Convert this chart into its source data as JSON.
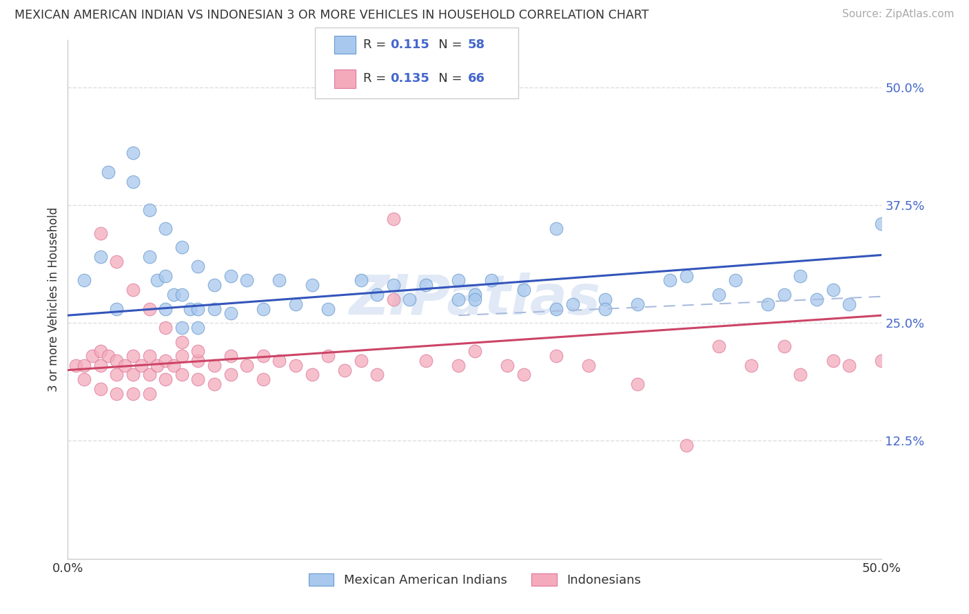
{
  "title": "MEXICAN AMERICAN INDIAN VS INDONESIAN 3 OR MORE VEHICLES IN HOUSEHOLD CORRELATION CHART",
  "source": "Source: ZipAtlas.com",
  "ylabel": "3 or more Vehicles in Household",
  "xlim": [
    0.0,
    0.5
  ],
  "ylim": [
    0.0,
    0.55
  ],
  "r_blue": 0.115,
  "n_blue": 58,
  "r_pink": 0.135,
  "n_pink": 66,
  "blue_scatter_color": "#A8C8EE",
  "pink_scatter_color": "#F4AABB",
  "blue_edge_color": "#6699CC",
  "pink_edge_color": "#DD7799",
  "line_blue": "#3355BB",
  "line_pink": "#CC4466",
  "line_dash_color": "#AABBDD",
  "watermark": "ZIPatlas",
  "background_color": "#FFFFFF",
  "grid_color": "#DDDDDD",
  "ytick_color": "#4466CC",
  "text_color": "#333333",
  "source_color": "#AAAAAA",
  "blue_line_y0": 0.258,
  "blue_line_y1": 0.322,
  "pink_line_y0": 0.2,
  "pink_line_y1": 0.258,
  "dash_line_y0": 0.258,
  "dash_line_y1": 0.278,
  "blue_x": [
    0.01,
    0.02,
    0.025,
    0.04,
    0.04,
    0.05,
    0.05,
    0.055,
    0.06,
    0.06,
    0.065,
    0.07,
    0.07,
    0.075,
    0.08,
    0.08,
    0.09,
    0.09,
    0.1,
    0.1,
    0.11,
    0.12,
    0.13,
    0.14,
    0.15,
    0.16,
    0.18,
    0.19,
    0.2,
    0.21,
    0.22,
    0.24,
    0.25,
    0.26,
    0.28,
    0.3,
    0.31,
    0.33,
    0.35,
    0.37,
    0.38,
    0.4,
    0.41,
    0.43,
    0.44,
    0.45,
    0.46,
    0.47,
    0.48,
    0.5,
    0.03,
    0.06,
    0.07,
    0.08,
    0.24,
    0.25,
    0.3,
    0.33
  ],
  "blue_y": [
    0.295,
    0.32,
    0.41,
    0.43,
    0.4,
    0.37,
    0.32,
    0.295,
    0.35,
    0.3,
    0.28,
    0.33,
    0.28,
    0.265,
    0.31,
    0.265,
    0.29,
    0.265,
    0.3,
    0.26,
    0.295,
    0.265,
    0.295,
    0.27,
    0.29,
    0.265,
    0.295,
    0.28,
    0.29,
    0.275,
    0.29,
    0.295,
    0.28,
    0.295,
    0.285,
    0.35,
    0.27,
    0.275,
    0.27,
    0.295,
    0.3,
    0.28,
    0.295,
    0.27,
    0.28,
    0.3,
    0.275,
    0.285,
    0.27,
    0.355,
    0.265,
    0.265,
    0.245,
    0.245,
    0.275,
    0.275,
    0.265,
    0.265
  ],
  "pink_x": [
    0.005,
    0.01,
    0.01,
    0.015,
    0.02,
    0.02,
    0.02,
    0.025,
    0.03,
    0.03,
    0.03,
    0.035,
    0.04,
    0.04,
    0.04,
    0.045,
    0.05,
    0.05,
    0.05,
    0.055,
    0.06,
    0.06,
    0.065,
    0.07,
    0.07,
    0.08,
    0.08,
    0.09,
    0.09,
    0.1,
    0.1,
    0.11,
    0.12,
    0.12,
    0.13,
    0.14,
    0.15,
    0.16,
    0.17,
    0.18,
    0.19,
    0.2,
    0.22,
    0.24,
    0.25,
    0.27,
    0.28,
    0.3,
    0.32,
    0.35,
    0.38,
    0.4,
    0.42,
    0.44,
    0.45,
    0.47,
    0.48,
    0.5,
    0.02,
    0.03,
    0.04,
    0.05,
    0.06,
    0.07,
    0.08,
    0.2
  ],
  "pink_y": [
    0.205,
    0.205,
    0.19,
    0.215,
    0.22,
    0.205,
    0.18,
    0.215,
    0.21,
    0.195,
    0.175,
    0.205,
    0.215,
    0.195,
    0.175,
    0.205,
    0.215,
    0.195,
    0.175,
    0.205,
    0.21,
    0.19,
    0.205,
    0.215,
    0.195,
    0.21,
    0.19,
    0.205,
    0.185,
    0.215,
    0.195,
    0.205,
    0.215,
    0.19,
    0.21,
    0.205,
    0.195,
    0.215,
    0.2,
    0.21,
    0.195,
    0.275,
    0.21,
    0.205,
    0.22,
    0.205,
    0.195,
    0.215,
    0.205,
    0.185,
    0.12,
    0.225,
    0.205,
    0.225,
    0.195,
    0.21,
    0.205,
    0.21,
    0.345,
    0.315,
    0.285,
    0.265,
    0.245,
    0.23,
    0.22,
    0.36
  ]
}
